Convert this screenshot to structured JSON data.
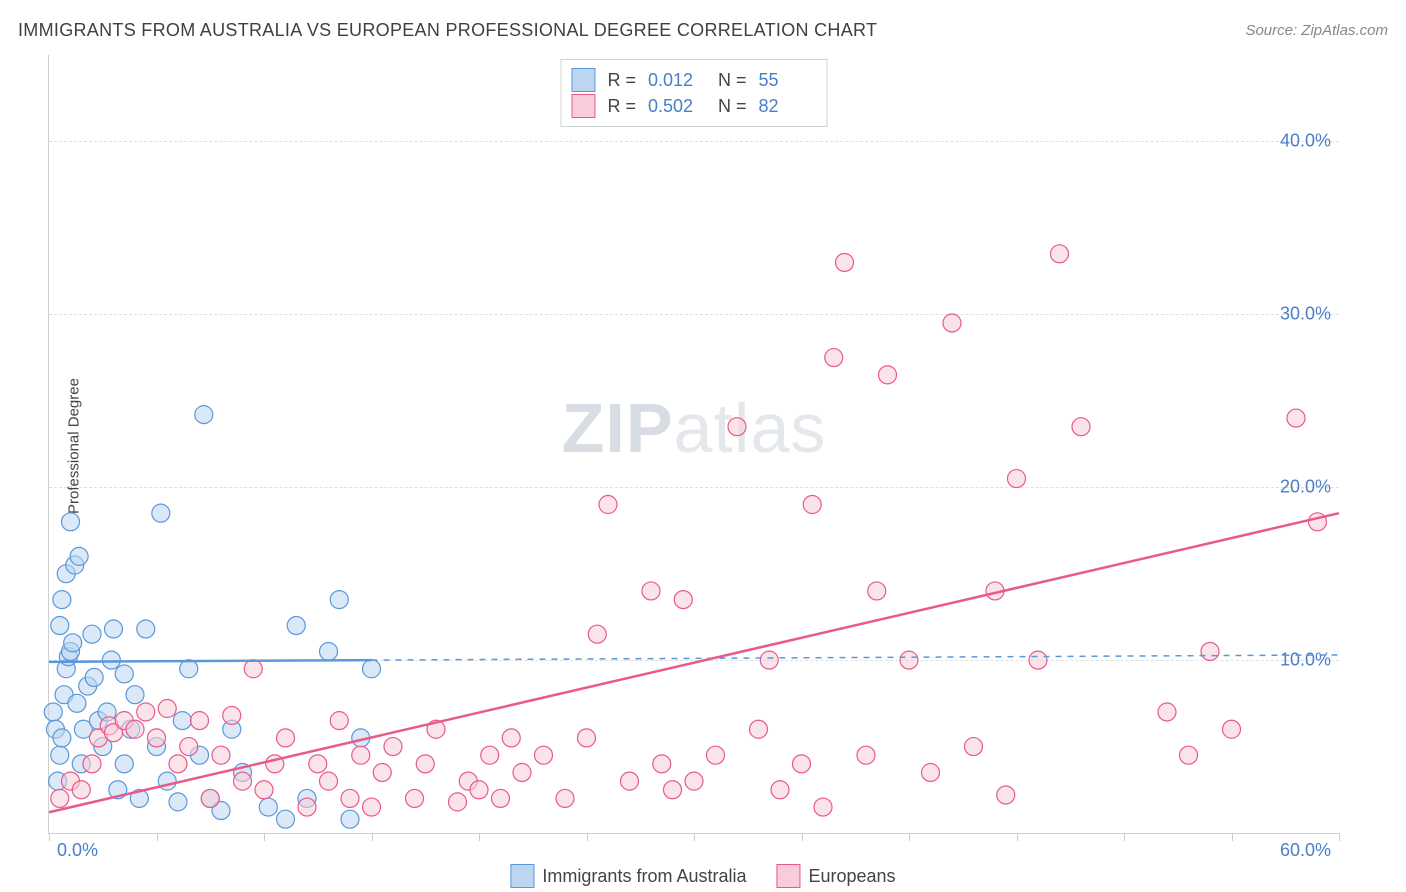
{
  "title": "IMMIGRANTS FROM AUSTRALIA VS EUROPEAN PROFESSIONAL DEGREE CORRELATION CHART",
  "source": "Source: ZipAtlas.com",
  "watermark_a": "ZIP",
  "watermark_b": "atlas",
  "y_axis_label": "Professional Degree",
  "chart": {
    "type": "scatter",
    "background_color": "#ffffff",
    "grid_color": "#e0e0e0",
    "axis_color": "#cfcfcf",
    "tick_label_color": "#4a7ec9",
    "axis_label_color": "#444444",
    "xlim": [
      0,
      60
    ],
    "ylim": [
      0,
      45
    ],
    "x_tick_step": 5,
    "y_ticks": [
      10,
      20,
      30,
      40
    ],
    "y_tick_labels": [
      "10.0%",
      "20.0%",
      "30.0%",
      "40.0%"
    ],
    "x_min_label": "0.0%",
    "x_max_label": "60.0%",
    "marker_radius": 9,
    "marker_opacity": 0.55,
    "trend_line_width": 2,
    "series": [
      {
        "name": "Immigrants from Australia",
        "color_fill": "#bcd5f0",
        "color_stroke": "#5a98db",
        "r_value": "0.012",
        "n_value": "55",
        "trend": {
          "x1": 0,
          "y1": 9.9,
          "x2": 15,
          "y2": 10.0,
          "dash_x2": 60,
          "dash_y2": 10.3
        },
        "points": [
          [
            0.2,
            7
          ],
          [
            0.3,
            6
          ],
          [
            0.4,
            3
          ],
          [
            0.5,
            4.5
          ],
          [
            0.6,
            5.5
          ],
          [
            0.7,
            8
          ],
          [
            0.8,
            9.5
          ],
          [
            0.9,
            10.2
          ],
          [
            1,
            10.5
          ],
          [
            1.1,
            11
          ],
          [
            0.5,
            12
          ],
          [
            0.6,
            13.5
          ],
          [
            0.8,
            15
          ],
          [
            1.2,
            15.5
          ],
          [
            1.4,
            16
          ],
          [
            1,
            18
          ],
          [
            1.3,
            7.5
          ],
          [
            1.5,
            4
          ],
          [
            1.6,
            6
          ],
          [
            1.8,
            8.5
          ],
          [
            2,
            11.5
          ],
          [
            2.1,
            9
          ],
          [
            2.3,
            6.5
          ],
          [
            2.5,
            5
          ],
          [
            2.7,
            7
          ],
          [
            2.9,
            10
          ],
          [
            3,
            11.8
          ],
          [
            3.2,
            2.5
          ],
          [
            3.5,
            4
          ],
          [
            3.8,
            6
          ],
          [
            4,
            8
          ],
          [
            4.2,
            2
          ],
          [
            4.5,
            11.8
          ],
          [
            5,
            5
          ],
          [
            5.2,
            18.5
          ],
          [
            5.5,
            3
          ],
          [
            6,
            1.8
          ],
          [
            6.2,
            6.5
          ],
          [
            6.5,
            9.5
          ],
          [
            7,
            4.5
          ],
          [
            7.2,
            24.2
          ],
          [
            7.5,
            2
          ],
          [
            8,
            1.3
          ],
          [
            8.5,
            6
          ],
          [
            9,
            3.5
          ],
          [
            10.2,
            1.5
          ],
          [
            11,
            0.8
          ],
          [
            11.5,
            12
          ],
          [
            12,
            2
          ],
          [
            13,
            10.5
          ],
          [
            13.5,
            13.5
          ],
          [
            14,
            0.8
          ],
          [
            14.5,
            5.5
          ],
          [
            15,
            9.5
          ],
          [
            3.5,
            9.2
          ]
        ]
      },
      {
        "name": "Europeans",
        "color_fill": "#f8ccd9",
        "color_stroke": "#e85a88",
        "r_value": "0.502",
        "n_value": "82",
        "trend": {
          "x1": 0,
          "y1": 1.2,
          "x2": 60,
          "y2": 18.5
        },
        "points": [
          [
            0.5,
            2
          ],
          [
            1,
            3
          ],
          [
            1.5,
            2.5
          ],
          [
            2,
            4
          ],
          [
            2.3,
            5.5
          ],
          [
            2.8,
            6.2
          ],
          [
            3,
            5.8
          ],
          [
            3.5,
            6.5
          ],
          [
            4,
            6
          ],
          [
            4.5,
            7
          ],
          [
            5,
            5.5
          ],
          [
            5.5,
            7.2
          ],
          [
            6,
            4
          ],
          [
            6.5,
            5
          ],
          [
            7,
            6.5
          ],
          [
            7.5,
            2
          ],
          [
            8,
            4.5
          ],
          [
            8.5,
            6.8
          ],
          [
            9,
            3
          ],
          [
            9.5,
            9.5
          ],
          [
            10,
            2.5
          ],
          [
            10.5,
            4
          ],
          [
            11,
            5.5
          ],
          [
            12,
            1.5
          ],
          [
            12.5,
            4
          ],
          [
            13,
            3
          ],
          [
            13.5,
            6.5
          ],
          [
            14,
            2
          ],
          [
            14.5,
            4.5
          ],
          [
            15,
            1.5
          ],
          [
            15.5,
            3.5
          ],
          [
            16,
            5
          ],
          [
            17,
            2
          ],
          [
            17.5,
            4
          ],
          [
            18,
            6
          ],
          [
            19,
            1.8
          ],
          [
            19.5,
            3
          ],
          [
            20,
            2.5
          ],
          [
            20.5,
            4.5
          ],
          [
            21,
            2
          ],
          [
            21.5,
            5.5
          ],
          [
            22,
            3.5
          ],
          [
            23,
            4.5
          ],
          [
            24,
            2
          ],
          [
            25,
            5.5
          ],
          [
            25.5,
            11.5
          ],
          [
            26,
            19
          ],
          [
            27,
            3
          ],
          [
            28,
            14
          ],
          [
            28.5,
            4
          ],
          [
            29,
            2.5
          ],
          [
            29.5,
            13.5
          ],
          [
            30,
            3
          ],
          [
            31,
            4.5
          ],
          [
            32,
            23.5
          ],
          [
            33,
            6
          ],
          [
            33.5,
            10
          ],
          [
            34,
            2.5
          ],
          [
            35,
            4
          ],
          [
            35.5,
            19
          ],
          [
            36,
            1.5
          ],
          [
            36.5,
            27.5
          ],
          [
            37,
            33
          ],
          [
            38,
            4.5
          ],
          [
            38.5,
            14
          ],
          [
            39,
            26.5
          ],
          [
            40,
            10
          ],
          [
            41,
            3.5
          ],
          [
            42,
            29.5
          ],
          [
            43,
            5
          ],
          [
            44,
            14
          ],
          [
            44.5,
            2.2
          ],
          [
            45,
            20.5
          ],
          [
            46,
            10
          ],
          [
            47,
            33.5
          ],
          [
            48,
            23.5
          ],
          [
            52,
            7
          ],
          [
            53,
            4.5
          ],
          [
            54,
            10.5
          ],
          [
            55,
            6
          ],
          [
            58,
            24
          ],
          [
            59,
            18
          ]
        ]
      }
    ]
  },
  "legend_labels": {
    "r": "R =",
    "n": "N ="
  }
}
